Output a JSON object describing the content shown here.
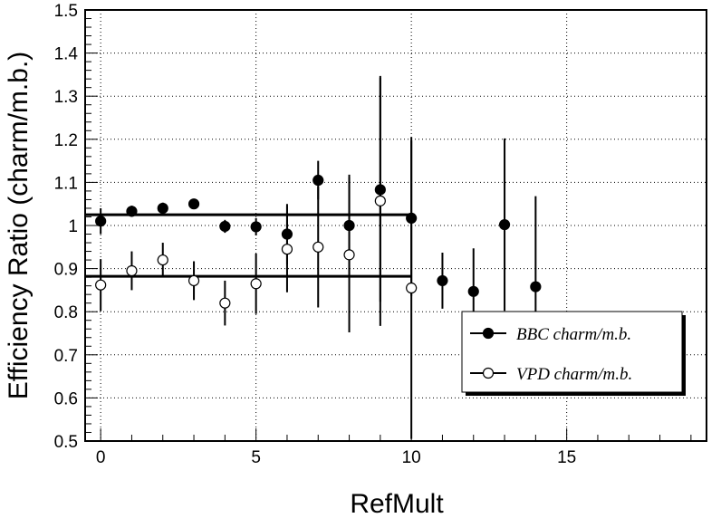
{
  "chart_data": {
    "type": "scatter",
    "xlabel": "RefMult",
    "ylabel": "Efficiency Ratio (charm/m.b.)",
    "xlim": [
      -0.5,
      19.5
    ],
    "ylim": [
      0.5,
      1.5
    ],
    "grid": true,
    "grid_style": "dotted",
    "x_ticks": [
      0,
      5,
      10,
      15
    ],
    "x_tick_labels": [
      "0",
      "5",
      "10",
      "15"
    ],
    "y_ticks": [
      0.5,
      0.6,
      0.7,
      0.8,
      0.9,
      1.0,
      1.1,
      1.2,
      1.3,
      1.4,
      1.5
    ],
    "y_tick_labels": [
      "0.5",
      "0.6",
      "0.7",
      "0.8",
      "0.9",
      "1",
      "1.1",
      "1.2",
      "1.3",
      "1.4",
      "1.5"
    ],
    "legend_position": "lower-right",
    "series": [
      {
        "name": "BBC charm/m.b.",
        "marker": "filled-circle",
        "color": "#000000",
        "points": [
          {
            "x": 0,
            "y": 1.01,
            "err": 0.03
          },
          {
            "x": 1,
            "y": 1.033,
            "err": 0.013
          },
          {
            "x": 2,
            "y": 1.04,
            "err": 0.013
          },
          {
            "x": 3,
            "y": 1.05,
            "err": 0.012
          },
          {
            "x": 4,
            "y": 0.998,
            "err": 0.015
          },
          {
            "x": 5,
            "y": 0.997,
            "err": 0.02
          },
          {
            "x": 6,
            "y": 0.98,
            "err": 0.07
          },
          {
            "x": 7,
            "y": 1.105,
            "err": 0.045
          },
          {
            "x": 8,
            "y": 1.0,
            "err": 0.118
          },
          {
            "x": 9,
            "y": 1.083,
            "err": 0.26
          },
          {
            "x": 10,
            "y": 1.017,
            "err": 0.18
          },
          {
            "x": 11,
            "y": 0.872,
            "err": 0.065
          },
          {
            "x": 12,
            "y": 0.847,
            "err": 0.1
          },
          {
            "x": 13,
            "y": 1.002,
            "err": 0.2
          },
          {
            "x": 14,
            "y": 0.858,
            "err": 0.21
          }
        ],
        "fit_line": {
          "x_range": [
            -0.5,
            10
          ],
          "y": 1.025
        }
      },
      {
        "name": "VPD charm/m.b.",
        "marker": "open-circle",
        "color": "#000000",
        "points": [
          {
            "x": 0,
            "y": 0.862,
            "err": 0.06
          },
          {
            "x": 1,
            "y": 0.895,
            "err": 0.045
          },
          {
            "x": 2,
            "y": 0.92,
            "err": 0.04
          },
          {
            "x": 3,
            "y": 0.872,
            "err": 0.045
          },
          {
            "x": 4,
            "y": 0.82,
            "err": 0.052
          },
          {
            "x": 5,
            "y": 0.865,
            "err": 0.07
          },
          {
            "x": 6,
            "y": 0.945,
            "err": 0.1
          },
          {
            "x": 7,
            "y": 0.95,
            "err": 0.14
          },
          {
            "x": 8,
            "y": 0.932,
            "err": 0.18
          },
          {
            "x": 9,
            "y": 1.057,
            "err": 0.29
          },
          {
            "x": 10,
            "y": 0.855,
            "err": 0.35
          }
        ],
        "fit_line": {
          "x_range": [
            -0.5,
            10
          ],
          "y": 0.882
        }
      }
    ]
  }
}
